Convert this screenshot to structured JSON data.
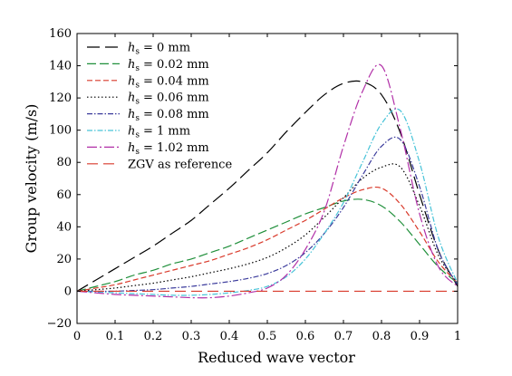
{
  "chart_data": {
    "type": "line",
    "xlabel": "Reduced wave vector",
    "ylabel": "Group velocity (m/s)",
    "xlim": [
      0,
      1
    ],
    "ylim": [
      -20,
      160
    ],
    "xticks": [
      "0",
      "0.1",
      "0.2",
      "0.3",
      "0.4",
      "0.5",
      "0.6",
      "0.7",
      "0.8",
      "0.9",
      "1"
    ],
    "yticks": [
      "−20",
      "0",
      "20",
      "40",
      "60",
      "80",
      "100",
      "120",
      "140",
      "160"
    ],
    "grid": false,
    "legend_position": "top-left",
    "x": [
      0,
      0.05,
      0.1,
      0.15,
      0.2,
      0.25,
      0.3,
      0.35,
      0.4,
      0.45,
      0.5,
      0.55,
      0.6,
      0.65,
      0.7,
      0.75,
      0.8,
      0.85,
      0.9,
      0.95,
      1.0
    ],
    "series": [
      {
        "name": "hs = 0 mm",
        "legend_label": "= 0 mm",
        "color": "#000000",
        "dash": "14,6",
        "values": [
          0,
          7,
          14,
          21,
          28,
          36,
          44,
          54,
          64,
          75,
          86,
          99,
          111,
          122,
          129,
          130,
          122,
          98,
          60,
          25,
          3
        ]
      },
      {
        "name": "hs = 0.02 mm",
        "legend_label": "= 0.02 mm",
        "color": "#1f8f3a",
        "dash": "10,4",
        "values": [
          0,
          3,
          6,
          10,
          13,
          17,
          20,
          24,
          28,
          33,
          38,
          43,
          48,
          52,
          56,
          57,
          53,
          43,
          29,
          15,
          5
        ]
      },
      {
        "name": "hs = 0.04 mm",
        "legend_label": "= 0.04 mm",
        "color": "#d93a2b",
        "dash": "6,3",
        "values": [
          0,
          2,
          4,
          7,
          10,
          13,
          16,
          19,
          23,
          27,
          32,
          38,
          44,
          51,
          58,
          63,
          64,
          54,
          37,
          18,
          5
        ]
      },
      {
        "name": "hs = 0.06 mm",
        "legend_label": "= 0.06 mm",
        "color": "#000000",
        "dash": "1.5,2.5",
        "values": [
          0,
          1,
          2,
          3.5,
          5,
          7,
          9,
          11.5,
          14,
          17,
          21,
          27,
          35,
          46,
          58,
          70,
          77,
          77,
          53,
          22,
          5
        ]
      },
      {
        "name": "hs = 0.08 mm",
        "legend_label": "= 0.08 mm",
        "color": "#3b3b9c",
        "dash": "6,2,1.5,2",
        "values": [
          0,
          0,
          0,
          0.5,
          1,
          2,
          3,
          4.5,
          6,
          8,
          11,
          16,
          24,
          36,
          52,
          72,
          90,
          94,
          65,
          25,
          4
        ]
      },
      {
        "name": "hs = 1 mm",
        "legend_label": "= 1 mm",
        "color": "#47c3d8",
        "dash": "6,2,1.5,2",
        "values": [
          0,
          -0.5,
          -1,
          -1.5,
          -2,
          -2.5,
          -2.5,
          -2,
          -1,
          0.5,
          3,
          9,
          20,
          36,
          55,
          80,
          104,
          112,
          80,
          33,
          5
        ]
      },
      {
        "name": "hs = 1.02 mm",
        "legend_label": "= 1.02 mm",
        "color": "#b12fa7",
        "dash": "11,3,2,3",
        "values": [
          0,
          -1,
          -2,
          -2.5,
          -3,
          -3.5,
          -4,
          -4,
          -3,
          -1,
          2,
          10,
          26,
          50,
          90,
          124,
          140,
          100,
          48,
          15,
          3
        ]
      },
      {
        "name": "ZGV as reference",
        "legend_label": "ZGV as reference",
        "color": "#d93a2b",
        "dash": "12,6",
        "values": [
          0,
          0,
          0,
          0,
          0,
          0,
          0,
          0,
          0,
          0,
          0,
          0,
          0,
          0,
          0,
          0,
          0,
          0,
          0,
          0,
          0
        ]
      }
    ]
  }
}
